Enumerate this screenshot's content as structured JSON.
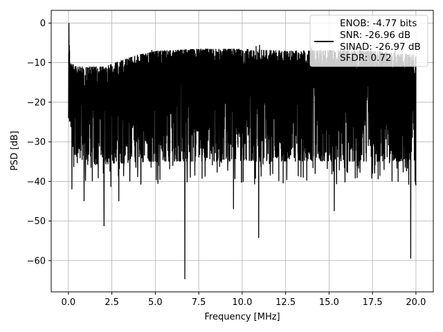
{
  "chart_data": {
    "type": "line",
    "title": "",
    "xlabel": "Frequency [MHz]",
    "ylabel": "PSD [dB]",
    "xlim": [
      -0.99,
      21.0
    ],
    "ylim": [
      -67.9,
      3.2
    ],
    "grid": true,
    "xticks": [
      0.0,
      2.5,
      5.0,
      7.5,
      10.0,
      12.5,
      15.0,
      17.5,
      20.0
    ],
    "xtick_labels": [
      "0.0",
      "2.5",
      "5.0",
      "7.5",
      "10.0",
      "12.5",
      "15.0",
      "17.5",
      "20.0"
    ],
    "yticks": [
      0,
      -10,
      -20,
      -30,
      -40,
      -50,
      -60
    ],
    "ytick_labels": [
      "0",
      "−10",
      "−20",
      "−30",
      "−40",
      "−50",
      "−60"
    ],
    "legend": {
      "placement": "top-right",
      "entries": [
        "ENOB: -4.77 bits",
        "SNR: -26.96 dB",
        "SINAD: -26.97 dB",
        "SFDR: 0.72"
      ]
    },
    "series": [
      {
        "color": "#000000",
        "envelope_upper": [
          [
            0.0,
            0.0
          ],
          [
            0.1,
            -10
          ],
          [
            0.5,
            -11
          ],
          [
            2.0,
            -11
          ],
          [
            3.0,
            -9.5
          ],
          [
            4.0,
            -8
          ],
          [
            5.0,
            -7
          ],
          [
            7.5,
            -6.5
          ],
          [
            10.0,
            -6.5
          ],
          [
            12.5,
            -7
          ],
          [
            15.0,
            -6.8
          ],
          [
            17.5,
            -7
          ],
          [
            20.0,
            -8
          ]
        ],
        "envelope_lower_typical": [
          [
            0.0,
            -24
          ],
          [
            0.3,
            -33
          ],
          [
            1.0,
            -36
          ],
          [
            5.0,
            -35
          ],
          [
            10.0,
            -35
          ],
          [
            15.0,
            -35
          ],
          [
            20.0,
            -35
          ]
        ],
        "dips": [
          [
            0.2,
            -42
          ],
          [
            0.9,
            -45
          ],
          [
            2.05,
            -51.3
          ],
          [
            2.9,
            -45
          ],
          [
            6.7,
            -64.7
          ],
          [
            9.5,
            -47
          ],
          [
            10.95,
            -54.3
          ],
          [
            15.3,
            -47.5
          ],
          [
            19.7,
            -59.5
          ],
          [
            19.95,
            -40
          ]
        ],
        "peaks": [
          [
            0.03,
            0.0
          ],
          [
            4.8,
            -6.8
          ],
          [
            10.8,
            -5.8
          ],
          [
            11.0,
            -5.5
          ],
          [
            14.0,
            -6.2
          ],
          [
            16.8,
            -6.0
          ],
          [
            18.8,
            -6.5
          ]
        ]
      }
    ]
  }
}
